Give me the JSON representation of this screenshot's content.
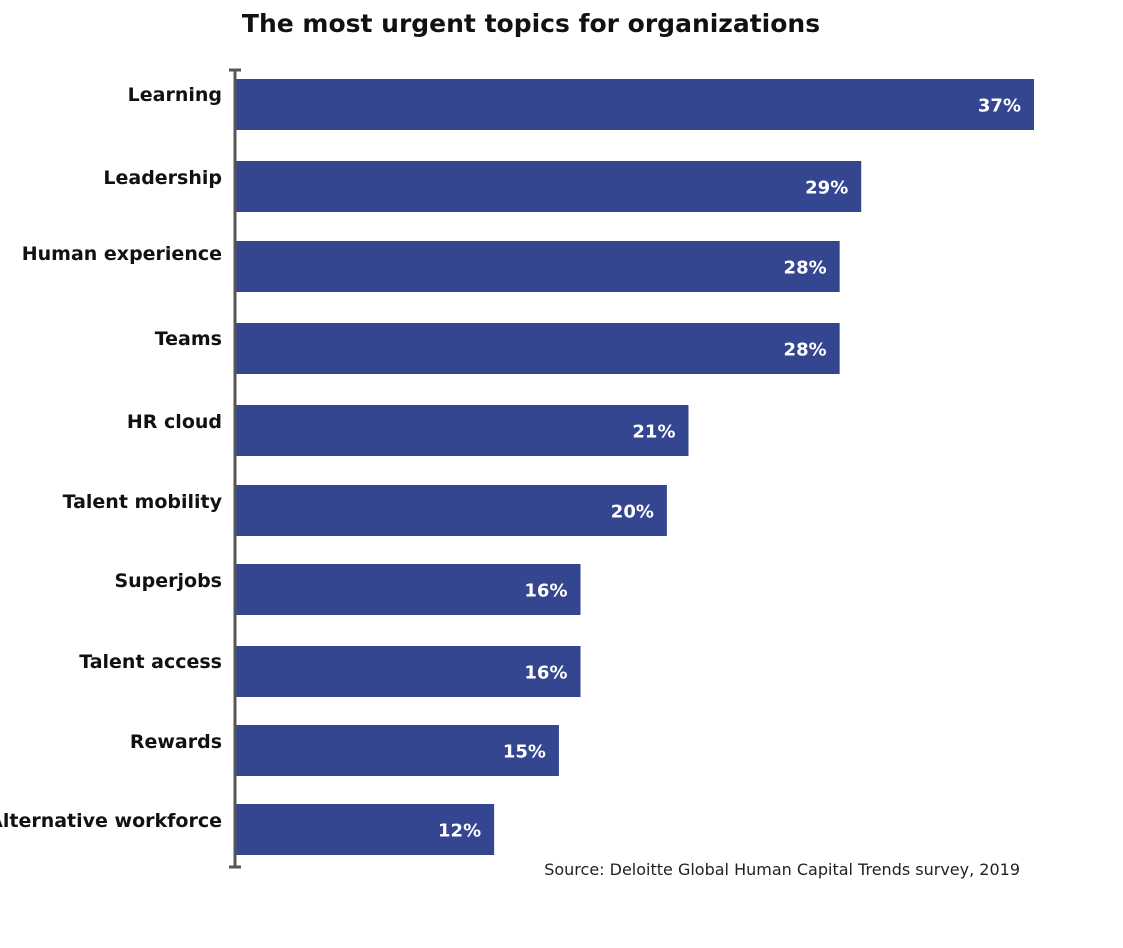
{
  "chart_data": {
    "type": "bar",
    "orientation": "horizontal",
    "title": "The most urgent topics for organizations",
    "categories": [
      "Learning",
      "Leadership",
      "Human experience",
      "Teams",
      "HR cloud",
      "Talent mobility",
      "Superjobs",
      "Talent access",
      "Rewards",
      "Alternative workforce"
    ],
    "values": [
      37,
      29,
      28,
      28,
      21,
      20,
      16,
      16,
      15,
      12
    ],
    "value_labels": [
      "37%",
      "29%",
      "28%",
      "28%",
      "21%",
      "20%",
      "16%",
      "16%",
      "15%",
      "12%"
    ],
    "unit": "%",
    "xlim": [
      0,
      37
    ],
    "grid": false,
    "legend": "none",
    "source": "Source: Deloitte Global Human Capital Trends survey, 2019",
    "bar_color": "#354690",
    "axis_color": "#555555"
  }
}
